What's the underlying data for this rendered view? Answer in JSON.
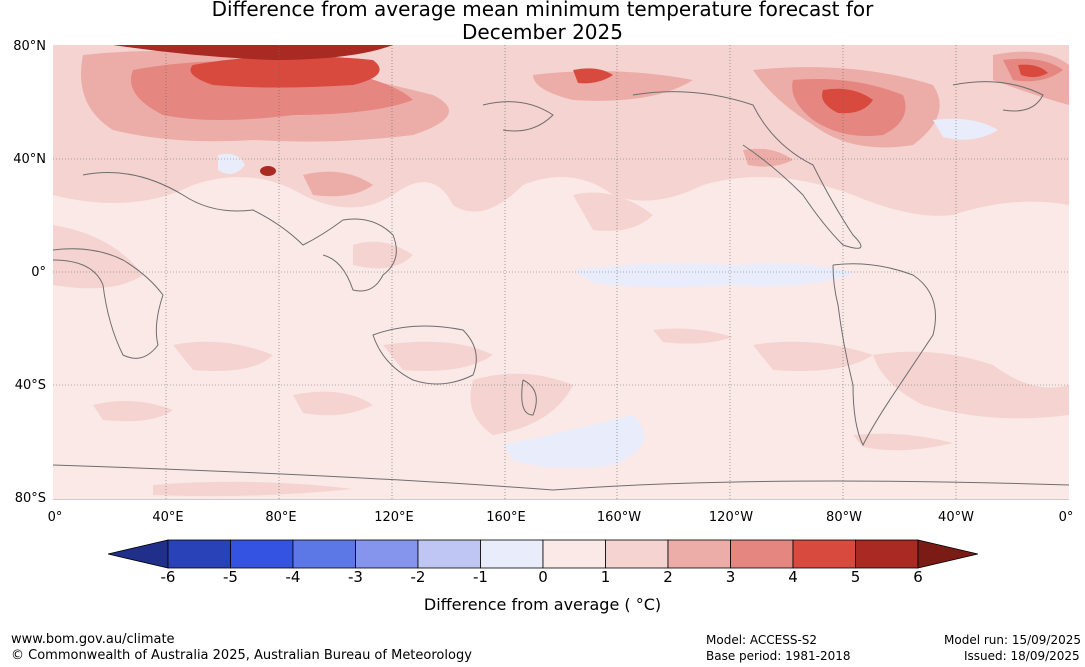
{
  "title_line1": "Difference from average mean minimum temperature forecast for",
  "title_line2": "December 2025",
  "lat_labels": [
    "80°N",
    "40°N",
    "0°",
    "40°S",
    "80°S"
  ],
  "lon_labels": [
    "0°",
    "40°E",
    "80°E",
    "120°E",
    "160°E",
    "160°W",
    "120°W",
    "80°W",
    "40°W",
    "0°"
  ],
  "colorbar": {
    "ticks": [
      "-6",
      "-5",
      "-4",
      "-3",
      "-2",
      "-1",
      "0",
      "1",
      "2",
      "3",
      "4",
      "5",
      "6"
    ],
    "colors": [
      "#1f2f8a",
      "#2a42b8",
      "#3353e0",
      "#5c78e6",
      "#8594ec",
      "#bfc6f3",
      "#e9ecfb",
      "#fbe9e7",
      "#f5d3d0",
      "#ecaca7",
      "#e58680",
      "#d84a3e",
      "#a92a22",
      "#7a1b15"
    ],
    "title": "Difference from average ( °C)"
  },
  "footer": {
    "url": "www.bom.gov.au/climate",
    "copyright": "© Commonwealth of Australia 2025, Australian Bureau of Meteorology",
    "model": "Model: ACCESS-S2",
    "base_period": "Base period: 1981-2018",
    "model_run": "Model run: 15/09/2025",
    "issued": "Issued: 18/09/2025"
  }
}
